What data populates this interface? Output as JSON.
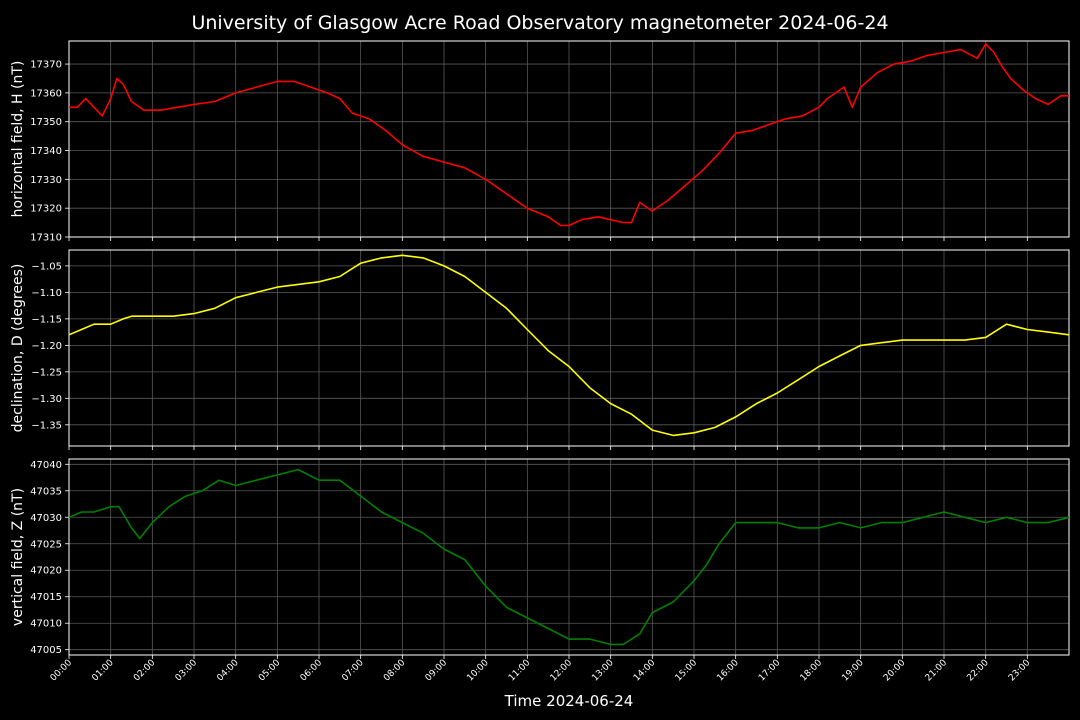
{
  "title": "University of Glasgow Acre Road Observatory magnetometer 2024-06-24",
  "xlabel": "Time 2024-06-24",
  "x_ticks": [
    "00:00",
    "01:00",
    "02:00",
    "03:00",
    "04:00",
    "05:00",
    "06:00",
    "07:00",
    "08:00",
    "09:00",
    "10:00",
    "11:00",
    "12:00",
    "13:00",
    "14:00",
    "15:00",
    "16:00",
    "17:00",
    "18:00",
    "19:00",
    "20:00",
    "21:00",
    "22:00",
    "23:00"
  ],
  "colors": {
    "background": "#000000",
    "text": "#ffffff",
    "grid": "#5a5a5a"
  },
  "chart_data": [
    {
      "type": "line",
      "ylabel": "horizontal field, H (nT)",
      "color": "#ff0000",
      "ylim": [
        17310,
        17378
      ],
      "yticks": [
        17310,
        17320,
        17330,
        17340,
        17350,
        17360,
        17370
      ],
      "ytick_labels": [
        "17310",
        "17320",
        "17330",
        "17340",
        "17350",
        "17360",
        "17370"
      ],
      "xlim_hours": [
        0,
        24
      ],
      "x_hours": [
        0,
        0.2,
        0.4,
        0.6,
        0.8,
        1.0,
        1.15,
        1.3,
        1.5,
        1.8,
        2.2,
        2.6,
        3.0,
        3.5,
        4.0,
        4.5,
        5.0,
        5.4,
        5.8,
        6.2,
        6.5,
        6.8,
        7.2,
        7.6,
        8.0,
        8.5,
        9.0,
        9.5,
        10.0,
        10.5,
        11.0,
        11.5,
        11.8,
        12.0,
        12.3,
        12.7,
        13.0,
        13.3,
        13.5,
        13.7,
        14.0,
        14.4,
        14.8,
        15.2,
        15.6,
        16.0,
        16.4,
        16.8,
        17.2,
        17.6,
        18.0,
        18.2,
        18.4,
        18.6,
        18.8,
        19.0,
        19.4,
        19.8,
        20.2,
        20.6,
        21.0,
        21.4,
        21.8,
        22.0,
        22.2,
        22.4,
        22.6,
        22.9,
        23.2,
        23.5,
        23.8,
        24.0
      ],
      "values": [
        17355,
        17355,
        17358,
        17355,
        17352,
        17358,
        17365,
        17363,
        17357,
        17354,
        17354,
        17355,
        17356,
        17357,
        17360,
        17362,
        17364,
        17364,
        17362,
        17360,
        17358,
        17353,
        17351,
        17347,
        17342,
        17338,
        17336,
        17334,
        17330,
        17325,
        17320,
        17317,
        17314,
        17314,
        17316,
        17317,
        17316,
        17315,
        17315,
        17322,
        17319,
        17323,
        17328,
        17333,
        17339,
        17346,
        17347,
        17349,
        17351,
        17352,
        17355,
        17358,
        17360,
        17362,
        17355,
        17362,
        17367,
        17370,
        17371,
        17373,
        17374,
        17375,
        17372,
        17377,
        17374,
        17369,
        17365,
        17361,
        17358,
        17356,
        17359,
        17359
      ]
    },
    {
      "type": "line",
      "ylabel": "declination, D (degrees)",
      "color": "#ffff00",
      "ylim": [
        -1.39,
        -1.02
      ],
      "yticks": [
        -1.35,
        -1.3,
        -1.25,
        -1.2,
        -1.15,
        -1.1,
        -1.05
      ],
      "ytick_labels": [
        "−1.35",
        "−1.30",
        "−1.25",
        "−1.20",
        "−1.15",
        "−1.10",
        "−1.05"
      ],
      "xlim_hours": [
        0,
        24
      ],
      "x_hours": [
        0,
        0.3,
        0.6,
        1.0,
        1.3,
        1.5,
        2.0,
        2.5,
        3.0,
        3.5,
        4.0,
        4.5,
        5.0,
        5.5,
        6.0,
        6.5,
        7.0,
        7.5,
        8.0,
        8.5,
        9.0,
        9.5,
        10.0,
        10.5,
        11.0,
        11.5,
        12.0,
        12.5,
        13.0,
        13.5,
        14.0,
        14.5,
        15.0,
        15.5,
        16.0,
        16.5,
        17.0,
        17.5,
        18.0,
        18.5,
        19.0,
        19.5,
        20.0,
        20.5,
        21.0,
        21.5,
        22.0,
        22.5,
        23.0,
        23.5,
        24.0
      ],
      "values": [
        -1.18,
        -1.17,
        -1.16,
        -1.16,
        -1.15,
        -1.145,
        -1.145,
        -1.145,
        -1.14,
        -1.13,
        -1.11,
        -1.1,
        -1.09,
        -1.085,
        -1.08,
        -1.07,
        -1.045,
        -1.035,
        -1.03,
        -1.035,
        -1.05,
        -1.07,
        -1.1,
        -1.13,
        -1.17,
        -1.21,
        -1.24,
        -1.28,
        -1.31,
        -1.33,
        -1.36,
        -1.37,
        -1.365,
        -1.355,
        -1.335,
        -1.31,
        -1.29,
        -1.265,
        -1.24,
        -1.22,
        -1.2,
        -1.195,
        -1.19,
        -1.19,
        -1.19,
        -1.19,
        -1.185,
        -1.16,
        -1.17,
        -1.175,
        -1.18
      ]
    },
    {
      "type": "line",
      "ylabel": "vertical field, Z (nT)",
      "color": "#008000",
      "ylim": [
        47004,
        47041
      ],
      "yticks": [
        47005,
        47010,
        47015,
        47020,
        47025,
        47030,
        47035,
        47040
      ],
      "ytick_labels": [
        "47005",
        "47010",
        "47015",
        "47020",
        "47025",
        "47030",
        "47035",
        "47040"
      ],
      "xlim_hours": [
        0,
        24
      ],
      "x_hours": [
        0,
        0.3,
        0.6,
        1.0,
        1.2,
        1.5,
        1.7,
        2.0,
        2.4,
        2.8,
        3.2,
        3.6,
        4.0,
        4.5,
        5.0,
        5.5,
        6.0,
        6.5,
        7.0,
        7.5,
        8.0,
        8.5,
        9.0,
        9.5,
        10.0,
        10.5,
        11.0,
        11.5,
        12.0,
        12.5,
        13.0,
        13.3,
        13.7,
        14.0,
        14.5,
        15.0,
        15.3,
        15.6,
        16.0,
        16.5,
        17.0,
        17.5,
        18.0,
        18.5,
        19.0,
        19.5,
        20.0,
        20.5,
        21.0,
        21.5,
        22.0,
        22.5,
        23.0,
        23.5,
        24.0
      ],
      "values": [
        47030,
        47031,
        47031,
        47032,
        47032,
        47028,
        47026,
        47029,
        47032,
        47034,
        47035,
        47037,
        47036,
        47037,
        47038,
        47039,
        47037,
        47037,
        47034,
        47031,
        47029,
        47027,
        47024,
        47022,
        47017,
        47013,
        47011,
        47009,
        47007,
        47007,
        47006,
        47006,
        47008,
        47012,
        47014,
        47018,
        47021,
        47025,
        47029,
        47029,
        47029,
        47028,
        47028,
        47029,
        47028,
        47029,
        47029,
        47030,
        47031,
        47030,
        47029,
        47030,
        47029,
        47029,
        47030
      ]
    }
  ]
}
